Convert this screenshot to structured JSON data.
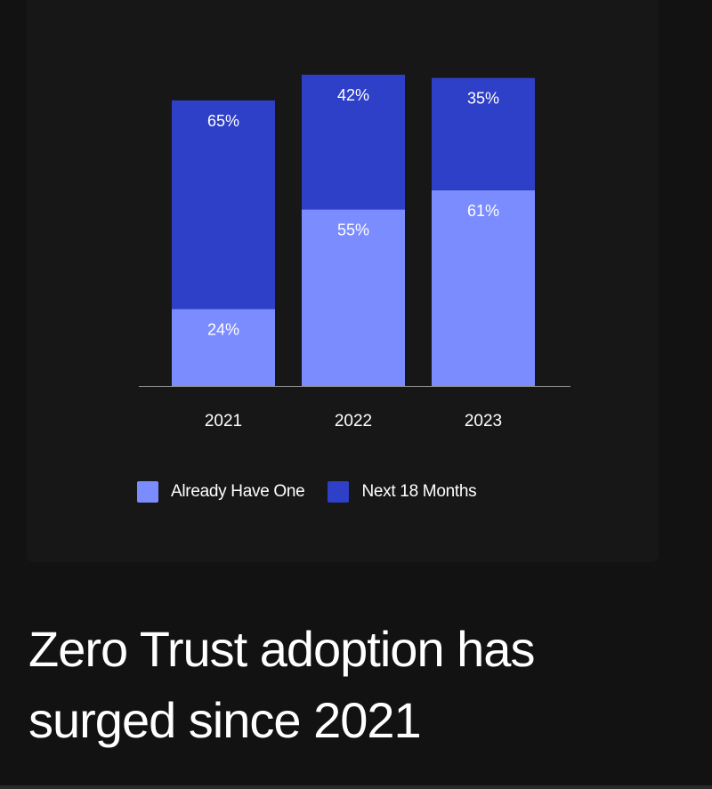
{
  "headline": "Zero Trust adoption has surged since 2021",
  "chart_data": {
    "type": "bar",
    "stacked": true,
    "categories": [
      "2021",
      "2022",
      "2023"
    ],
    "series": [
      {
        "name": "Already Have One",
        "values": [
          24,
          55,
          61
        ],
        "labels": [
          "24%",
          "55%",
          "61%"
        ],
        "color": "#7b8cff"
      },
      {
        "name": "Next 18 Months",
        "values": [
          65,
          42,
          35
        ],
        "labels": [
          "65%",
          "42%",
          "35%"
        ],
        "color": "#2e3fc8"
      }
    ],
    "ylim": [
      0,
      97
    ],
    "grid": false,
    "legend_position": "bottom"
  },
  "colors": {
    "background": "#121212",
    "card": "#171717",
    "axis": "#8a8a8a"
  }
}
